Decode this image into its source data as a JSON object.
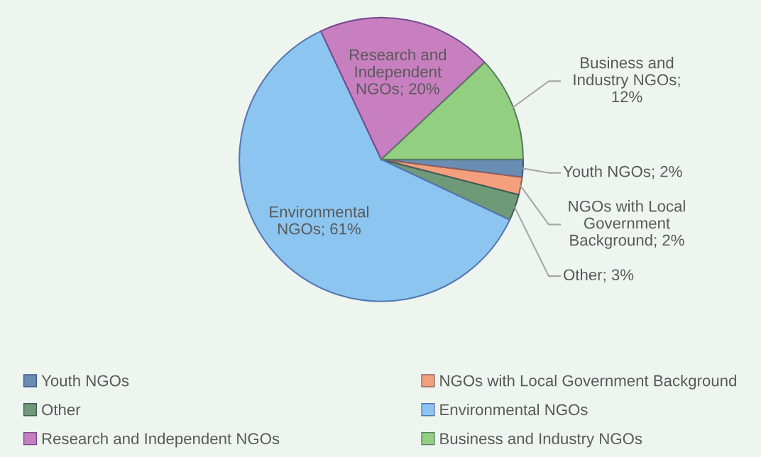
{
  "chart_data": {
    "type": "pie",
    "categories": [
      "Youth NGOs",
      "NGOs with Local Government Background",
      "Other",
      "Environmental NGOs",
      "Research and Independent NGOs",
      "Business and Industry NGOs"
    ],
    "values": [
      2,
      2,
      3,
      61,
      20,
      12
    ],
    "colors": [
      "#6a8db3",
      "#f4a07e",
      "#6f9a78",
      "#8cc6f0",
      "#c87fc0",
      "#92cf80"
    ],
    "value_labels": [
      "Youth NGOs; 2%",
      "NGOs with Local\nGovernment\nBackground; 2%",
      "Other; 3%",
      "Environmental\nNGOs; 61%",
      "Research and\nIndependent\nNGOs; 20%",
      "Business and\nIndustry NGOs;\n12%"
    ],
    "legend": "bottom"
  }
}
